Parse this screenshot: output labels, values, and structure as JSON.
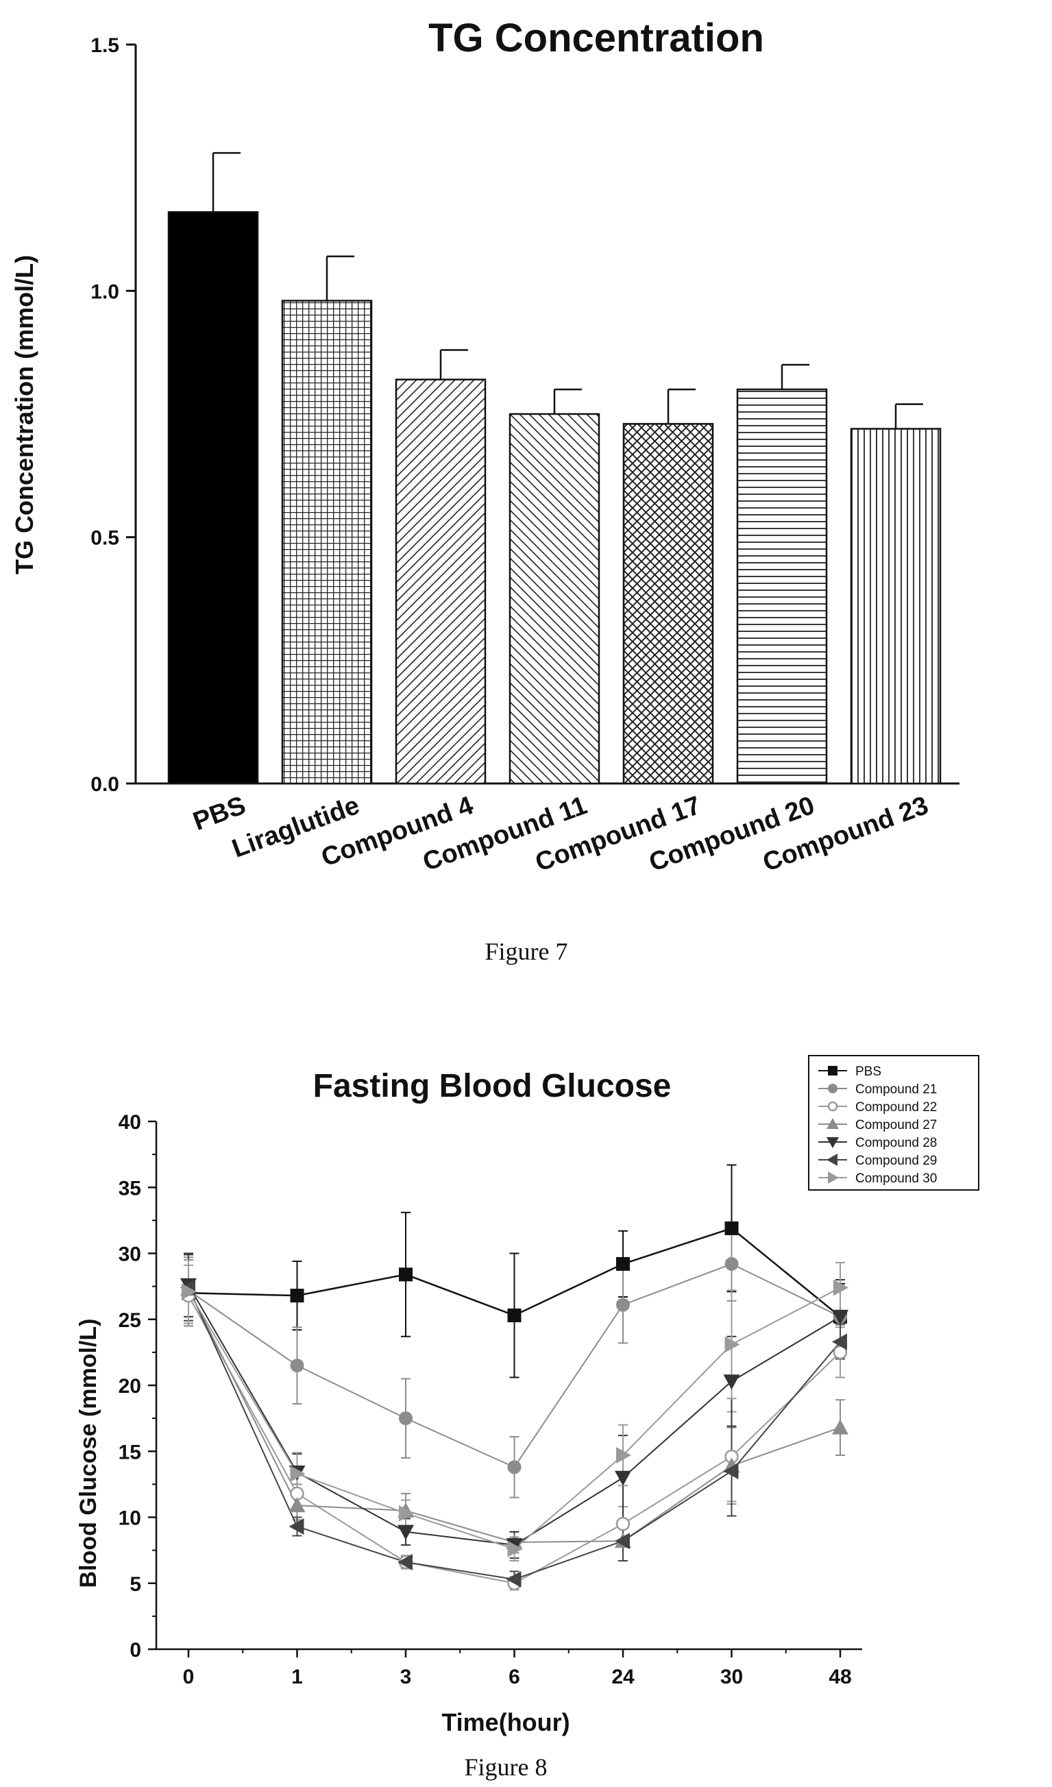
{
  "chart_data": [
    {
      "type": "bar",
      "title": "TG Concentration",
      "ylabel": "TG Concentration (mmol/L)",
      "xlabel": "",
      "ylim": [
        0,
        1.5
      ],
      "yticks": [
        "0.0",
        "0.5",
        "1.0",
        "1.5"
      ],
      "categories": [
        "PBS",
        "Liraglutide",
        "Compound 4",
        "Compound 11",
        "Compound 17",
        "Compound 20",
        "Compound  23"
      ],
      "values": [
        1.16,
        0.98,
        0.82,
        0.75,
        0.73,
        0.8,
        0.72
      ],
      "error": [
        0.12,
        0.09,
        0.06,
        0.05,
        0.07,
        0.05,
        0.05
      ],
      "patterns": [
        "solid",
        "grid",
        "diag-fine",
        "back-diag",
        "crosshatch",
        "horizontal",
        "vertical"
      ],
      "caption": "Figure 7",
      "grid": false
    },
    {
      "type": "line",
      "title": "Fasting Blood Glucose",
      "xlabel": "Time(hour)",
      "ylabel": "Blood Glucose (mmol/L)",
      "ylim": [
        0,
        40
      ],
      "yticks": [
        "0",
        "5",
        "10",
        "15",
        "20",
        "25",
        "30",
        "35",
        "40"
      ],
      "categories": [
        "0",
        "1",
        "3",
        "6",
        "24",
        "30",
        "48"
      ],
      "legend_position": "top-right",
      "grid": false,
      "series": [
        {
          "name": "PBS",
          "color": "#111111",
          "marker": "square",
          "values": [
            27.0,
            26.8,
            28.4,
            25.3,
            29.2,
            31.9,
            25.2
          ],
          "error": [
            2.5,
            2.6,
            4.7,
            4.7,
            2.5,
            4.8,
            2.5
          ]
        },
        {
          "name": "Compound 21",
          "color": "#8c8c8c",
          "marker": "circle",
          "values": [
            27.2,
            21.5,
            17.5,
            13.8,
            26.1,
            29.2,
            25.2
          ],
          "error": [
            2.5,
            2.9,
            3.0,
            2.3,
            2.9,
            2.8,
            2.3
          ]
        },
        {
          "name": "Compound 22",
          "color": "#9a9a9a",
          "marker": "circle-open",
          "values": [
            26.8,
            11.8,
            6.6,
            5.0,
            9.5,
            14.6,
            22.5
          ],
          "error": [
            2.3,
            2.0,
            0.5,
            0.5,
            1.3,
            3.4,
            1.9
          ]
        },
        {
          "name": "Compound 27",
          "color": "#8c8c8c",
          "marker": "triangle-up",
          "values": [
            27.3,
            10.9,
            10.5,
            8.1,
            8.2,
            13.9,
            16.8
          ],
          "error": [
            2.6,
            1.6,
            1.3,
            0.8,
            1.5,
            2.9,
            2.1
          ]
        },
        {
          "name": "Compound 28",
          "color": "#333333",
          "marker": "triangle-down",
          "values": [
            27.6,
            13.4,
            8.9,
            7.9,
            13.0,
            20.3,
            25.2
          ],
          "error": [
            2.4,
            1.4,
            1.0,
            1.0,
            3.2,
            3.4,
            2.8
          ]
        },
        {
          "name": "Compound 29",
          "color": "#444444",
          "marker": "triangle-left",
          "values": [
            27.4,
            9.3,
            6.6,
            5.3,
            8.2,
            13.5,
            23.3
          ],
          "error": [
            2.5,
            0.7,
            0.4,
            0.6,
            1.5,
            3.4,
            1.3
          ]
        },
        {
          "name": "Compound 30",
          "color": "#9a9a9a",
          "marker": "triangle-right",
          "values": [
            27.1,
            13.3,
            10.3,
            7.6,
            14.7,
            23.1,
            27.4
          ],
          "error": [
            2.4,
            1.6,
            1.0,
            0.9,
            2.3,
            4.1,
            1.9
          ]
        }
      ],
      "caption": "Figure 8"
    }
  ]
}
